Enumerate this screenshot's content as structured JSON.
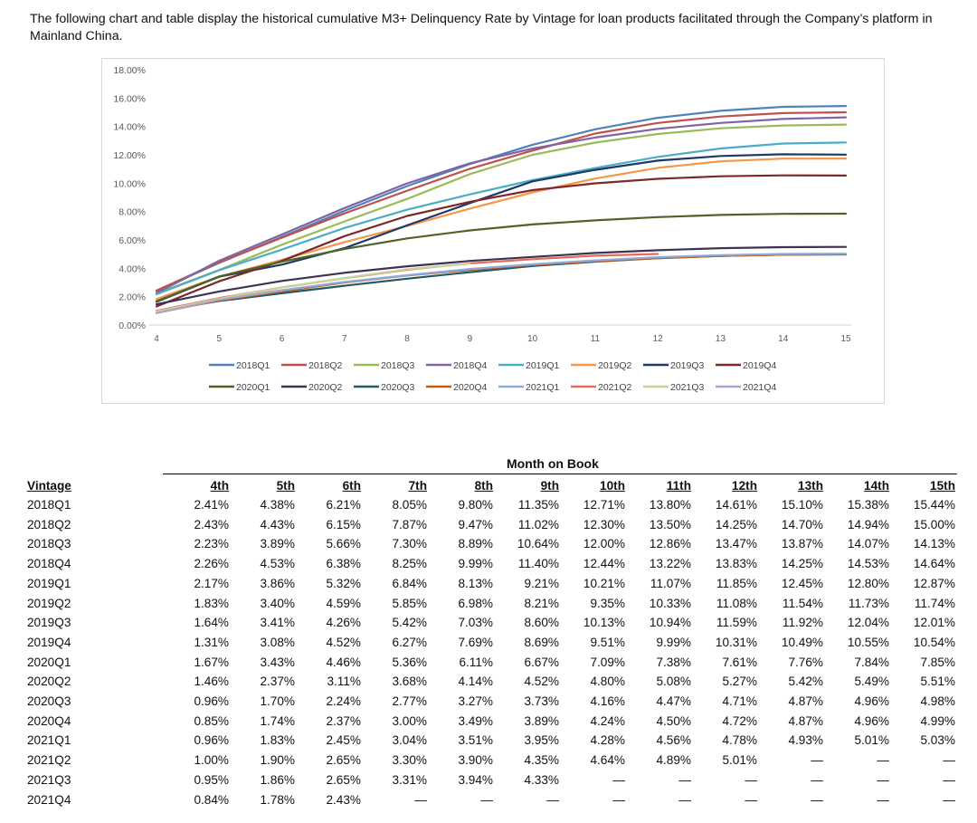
{
  "intro_text": "The following chart and table display the historical cumulative M3+ Delinquency Rate by Vintage for loan products facilitated through the Company’s platform in Mainland China.",
  "chart_data": {
    "type": "line",
    "title": "",
    "xlabel": "",
    "ylabel": "",
    "x": [
      4,
      5,
      6,
      7,
      8,
      9,
      10,
      11,
      12,
      13,
      14,
      15
    ],
    "xlim": [
      4,
      15
    ],
    "ylim": [
      0,
      18
    ],
    "yticks": [
      "0.00%",
      "2.00%",
      "4.00%",
      "6.00%",
      "8.00%",
      "10.00%",
      "12.00%",
      "14.00%",
      "16.00%",
      "18.00%"
    ],
    "xticks": [
      "4",
      "5",
      "6",
      "7",
      "8",
      "9",
      "10",
      "11",
      "12",
      "13",
      "14",
      "15"
    ],
    "legend_position": "bottom",
    "series": [
      {
        "name": "2018Q1",
        "color": "#4F81BD",
        "values": [
          2.41,
          4.38,
          6.21,
          8.05,
          9.8,
          11.35,
          12.71,
          13.8,
          14.61,
          15.1,
          15.38,
          15.44
        ]
      },
      {
        "name": "2018Q2",
        "color": "#C0504D",
        "values": [
          2.43,
          4.43,
          6.15,
          7.87,
          9.47,
          11.02,
          12.3,
          13.5,
          14.25,
          14.7,
          14.94,
          15.0
        ]
      },
      {
        "name": "2018Q3",
        "color": "#9BBB59",
        "values": [
          2.23,
          3.89,
          5.66,
          7.3,
          8.89,
          10.64,
          12.0,
          12.86,
          13.47,
          13.87,
          14.07,
          14.13
        ]
      },
      {
        "name": "2018Q4",
        "color": "#8064A2",
        "values": [
          2.26,
          4.53,
          6.38,
          8.25,
          9.99,
          11.4,
          12.44,
          13.22,
          13.83,
          14.25,
          14.53,
          14.64
        ]
      },
      {
        "name": "2019Q1",
        "color": "#4BACC6",
        "values": [
          2.17,
          3.86,
          5.32,
          6.84,
          8.13,
          9.21,
          10.21,
          11.07,
          11.85,
          12.45,
          12.8,
          12.87
        ]
      },
      {
        "name": "2019Q2",
        "color": "#F79646",
        "values": [
          1.83,
          3.4,
          4.59,
          5.85,
          6.98,
          8.21,
          9.35,
          10.33,
          11.08,
          11.54,
          11.73,
          11.74
        ]
      },
      {
        "name": "2019Q3",
        "color": "#1F3864",
        "values": [
          1.64,
          3.41,
          4.26,
          5.42,
          7.03,
          8.6,
          10.13,
          10.94,
          11.59,
          11.92,
          12.04,
          12.01
        ]
      },
      {
        "name": "2019Q4",
        "color": "#7B2A2A",
        "values": [
          1.31,
          3.08,
          4.52,
          6.27,
          7.69,
          8.69,
          9.51,
          9.99,
          10.31,
          10.49,
          10.55,
          10.54
        ]
      },
      {
        "name": "2020Q1",
        "color": "#4F6228",
        "values": [
          1.67,
          3.43,
          4.46,
          5.36,
          6.11,
          6.67,
          7.09,
          7.38,
          7.61,
          7.76,
          7.84,
          7.85
        ]
      },
      {
        "name": "2020Q2",
        "color": "#3F3151",
        "values": [
          1.46,
          2.37,
          3.11,
          3.68,
          4.14,
          4.52,
          4.8,
          5.08,
          5.27,
          5.42,
          5.49,
          5.51
        ]
      },
      {
        "name": "2020Q3",
        "color": "#215967",
        "values": [
          0.96,
          1.7,
          2.24,
          2.77,
          3.27,
          3.73,
          4.16,
          4.47,
          4.71,
          4.87,
          4.96,
          4.98
        ]
      },
      {
        "name": "2020Q4",
        "color": "#C55A11",
        "values": [
          0.85,
          1.74,
          2.37,
          3.0,
          3.49,
          3.89,
          4.24,
          4.5,
          4.72,
          4.87,
          4.96,
          4.99
        ]
      },
      {
        "name": "2021Q1",
        "color": "#8EA9DB",
        "values": [
          0.96,
          1.83,
          2.45,
          3.04,
          3.51,
          3.95,
          4.28,
          4.56,
          4.78,
          4.93,
          5.01,
          5.03
        ]
      },
      {
        "name": "2021Q2",
        "color": "#E46C5A",
        "values": [
          1.0,
          1.9,
          2.65,
          3.3,
          3.9,
          4.35,
          4.64,
          4.89,
          5.01,
          null,
          null,
          null
        ]
      },
      {
        "name": "2021Q3",
        "color": "#C3D69B",
        "values": [
          0.95,
          1.86,
          2.65,
          3.31,
          3.94,
          4.33,
          null,
          null,
          null,
          null,
          null,
          null
        ]
      },
      {
        "name": "2021Q4",
        "color": "#B1A0C7",
        "values": [
          0.84,
          1.78,
          2.43,
          null,
          null,
          null,
          null,
          null,
          null,
          null,
          null,
          null
        ]
      }
    ]
  },
  "table": {
    "group_header": "Month on Book",
    "vintage_header": "Vintage",
    "columns": [
      "4th",
      "5th",
      "6th",
      "7th",
      "8th",
      "9th",
      "10th",
      "11th",
      "12th",
      "13th",
      "14th",
      "15th"
    ],
    "rows": [
      {
        "vintage": "2018Q1",
        "cells": [
          "2.41%",
          "4.38%",
          "6.21%",
          "8.05%",
          "9.80%",
          "11.35%",
          "12.71%",
          "13.80%",
          "14.61%",
          "15.10%",
          "15.38%",
          "15.44%"
        ]
      },
      {
        "vintage": "2018Q2",
        "cells": [
          "2.43%",
          "4.43%",
          "6.15%",
          "7.87%",
          "9.47%",
          "11.02%",
          "12.30%",
          "13.50%",
          "14.25%",
          "14.70%",
          "14.94%",
          "15.00%"
        ]
      },
      {
        "vintage": "2018Q3",
        "cells": [
          "2.23%",
          "3.89%",
          "5.66%",
          "7.30%",
          "8.89%",
          "10.64%",
          "12.00%",
          "12.86%",
          "13.47%",
          "13.87%",
          "14.07%",
          "14.13%"
        ]
      },
      {
        "vintage": "2018Q4",
        "cells": [
          "2.26%",
          "4.53%",
          "6.38%",
          "8.25%",
          "9.99%",
          "11.40%",
          "12.44%",
          "13.22%",
          "13.83%",
          "14.25%",
          "14.53%",
          "14.64%"
        ]
      },
      {
        "vintage": "2019Q1",
        "cells": [
          "2.17%",
          "3.86%",
          "5.32%",
          "6.84%",
          "8.13%",
          "9.21%",
          "10.21%",
          "11.07%",
          "11.85%",
          "12.45%",
          "12.80%",
          "12.87%"
        ]
      },
      {
        "vintage": "2019Q2",
        "cells": [
          "1.83%",
          "3.40%",
          "4.59%",
          "5.85%",
          "6.98%",
          "8.21%",
          "9.35%",
          "10.33%",
          "11.08%",
          "11.54%",
          "11.73%",
          "11.74%"
        ]
      },
      {
        "vintage": "2019Q3",
        "cells": [
          "1.64%",
          "3.41%",
          "4.26%",
          "5.42%",
          "7.03%",
          "8.60%",
          "10.13%",
          "10.94%",
          "11.59%",
          "11.92%",
          "12.04%",
          "12.01%"
        ]
      },
      {
        "vintage": "2019Q4",
        "cells": [
          "1.31%",
          "3.08%",
          "4.52%",
          "6.27%",
          "7.69%",
          "8.69%",
          "9.51%",
          "9.99%",
          "10.31%",
          "10.49%",
          "10.55%",
          "10.54%"
        ]
      },
      {
        "vintage": "2020Q1",
        "cells": [
          "1.67%",
          "3.43%",
          "4.46%",
          "5.36%",
          "6.11%",
          "6.67%",
          "7.09%",
          "7.38%",
          "7.61%",
          "7.76%",
          "7.84%",
          "7.85%"
        ]
      },
      {
        "vintage": "2020Q2",
        "cells": [
          "1.46%",
          "2.37%",
          "3.11%",
          "3.68%",
          "4.14%",
          "4.52%",
          "4.80%",
          "5.08%",
          "5.27%",
          "5.42%",
          "5.49%",
          "5.51%"
        ]
      },
      {
        "vintage": "2020Q3",
        "cells": [
          "0.96%",
          "1.70%",
          "2.24%",
          "2.77%",
          "3.27%",
          "3.73%",
          "4.16%",
          "4.47%",
          "4.71%",
          "4.87%",
          "4.96%",
          "4.98%"
        ]
      },
      {
        "vintage": "2020Q4",
        "cells": [
          "0.85%",
          "1.74%",
          "2.37%",
          "3.00%",
          "3.49%",
          "3.89%",
          "4.24%",
          "4.50%",
          "4.72%",
          "4.87%",
          "4.96%",
          "4.99%"
        ]
      },
      {
        "vintage": "2021Q1",
        "cells": [
          "0.96%",
          "1.83%",
          "2.45%",
          "3.04%",
          "3.51%",
          "3.95%",
          "4.28%",
          "4.56%",
          "4.78%",
          "4.93%",
          "5.01%",
          "5.03%"
        ]
      },
      {
        "vintage": "2021Q2",
        "cells": [
          "1.00%",
          "1.90%",
          "2.65%",
          "3.30%",
          "3.90%",
          "4.35%",
          "4.64%",
          "4.89%",
          "5.01%",
          "—",
          "—",
          "—"
        ]
      },
      {
        "vintage": "2021Q3",
        "cells": [
          "0.95%",
          "1.86%",
          "2.65%",
          "3.31%",
          "3.94%",
          "4.33%",
          "—",
          "—",
          "—",
          "—",
          "—",
          "—"
        ]
      },
      {
        "vintage": "2021Q4",
        "cells": [
          "0.84%",
          "1.78%",
          "2.43%",
          "—",
          "—",
          "—",
          "—",
          "—",
          "—",
          "—",
          "—",
          "—"
        ]
      }
    ]
  }
}
